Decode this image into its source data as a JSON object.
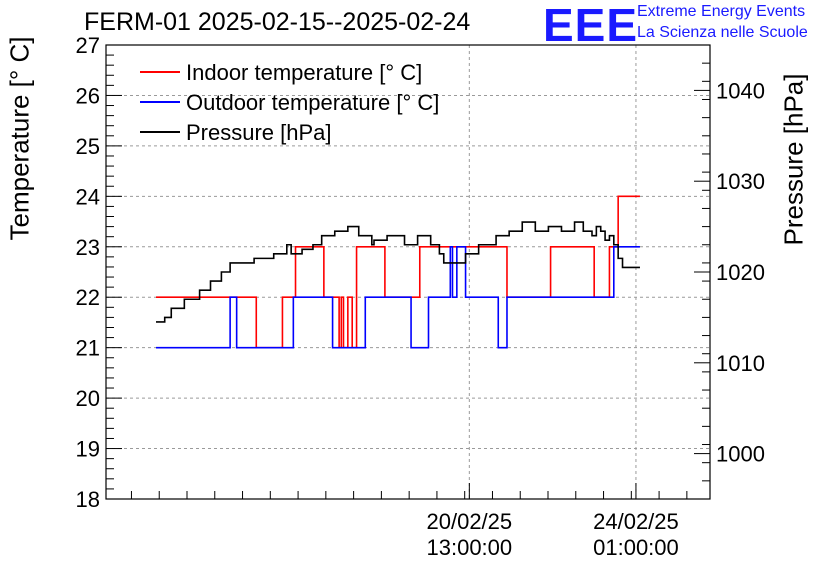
{
  "header": {
    "title": "FERM-01 2025-02-15--2025-02-24",
    "logo_text": "EEE",
    "logo_line1": "Extreme Energy Events",
    "logo_line2": "La Scienza nelle Scuole",
    "logo_color": "#1a1aff"
  },
  "chart_data": {
    "type": "line",
    "title": "FERM-01 2025-02-15--2025-02-24",
    "ylabel": "Temperature [° C]",
    "y2label": "Pressure [hPa]",
    "ylim": [
      18,
      27
    ],
    "y2lim": [
      995,
      1045
    ],
    "yticks": [
      18,
      19,
      20,
      21,
      22,
      23,
      24,
      25,
      26,
      27
    ],
    "y2ticks": [
      1000,
      1010,
      1020,
      1030,
      1040
    ],
    "x_unit": "hours since 2025-02-15 00:00",
    "xlim": [
      -23,
      238
    ],
    "xtick_labels": [
      {
        "line1": "20/02/25",
        "line2": "13:00:00"
      },
      {
        "line1": "24/02/25",
        "line2": "01:00:00"
      }
    ],
    "grid": true,
    "legend_position": "top-left",
    "series": [
      {
        "name": "Indoor temperature [° C]",
        "axis": "left",
        "color": "#ff0000",
        "points": [
          [
            0,
            22
          ],
          [
            40,
            22
          ],
          [
            46,
            21
          ],
          [
            55,
            21
          ],
          [
            58,
            22
          ],
          [
            62,
            22
          ],
          [
            64,
            23
          ],
          [
            76,
            23
          ],
          [
            77,
            22
          ],
          [
            83,
            22
          ],
          [
            84,
            21
          ],
          [
            85,
            22
          ],
          [
            86,
            21
          ],
          [
            88,
            22
          ],
          [
            90,
            21
          ],
          [
            92,
            23
          ],
          [
            104,
            23
          ],
          [
            105,
            22
          ],
          [
            120,
            22
          ],
          [
            121,
            23
          ],
          [
            160,
            23
          ],
          [
            161,
            22
          ],
          [
            179,
            22
          ],
          [
            181,
            23
          ],
          [
            200,
            23
          ],
          [
            201,
            22
          ],
          [
            206,
            22
          ],
          [
            208,
            23
          ],
          [
            211,
            23
          ],
          [
            212,
            24
          ],
          [
            222,
            24
          ]
        ]
      },
      {
        "name": "Outdoor temperature [° C]",
        "axis": "left",
        "color": "#0000ff",
        "points": [
          [
            0,
            21
          ],
          [
            33,
            21
          ],
          [
            34,
            22
          ],
          [
            36,
            22
          ],
          [
            37,
            21
          ],
          [
            62,
            21
          ],
          [
            63,
            22
          ],
          [
            80,
            22
          ],
          [
            81,
            21
          ],
          [
            94,
            21
          ],
          [
            96,
            22
          ],
          [
            116,
            22
          ],
          [
            117,
            21
          ],
          [
            124,
            21
          ],
          [
            125,
            22
          ],
          [
            134,
            22
          ],
          [
            135,
            23
          ],
          [
            136,
            22
          ],
          [
            138,
            23
          ],
          [
            141,
            23
          ],
          [
            142,
            22
          ],
          [
            155,
            22
          ],
          [
            157,
            21
          ],
          [
            160,
            21
          ],
          [
            161,
            22
          ],
          [
            208,
            22
          ],
          [
            210,
            23
          ],
          [
            222,
            23
          ]
        ]
      },
      {
        "name": "Pressure [hPa]",
        "axis": "right",
        "color": "#000000",
        "points": [
          [
            0,
            1014.5
          ],
          [
            3,
            1014.5
          ],
          [
            4,
            1015
          ],
          [
            6,
            1015
          ],
          [
            7,
            1016
          ],
          [
            12,
            1016
          ],
          [
            13,
            1017
          ],
          [
            18,
            1017
          ],
          [
            20,
            1018
          ],
          [
            23,
            1018
          ],
          [
            25,
            1019
          ],
          [
            29,
            1019
          ],
          [
            30,
            1020
          ],
          [
            33,
            1020
          ],
          [
            34,
            1021
          ],
          [
            43,
            1021
          ],
          [
            45,
            1021.5
          ],
          [
            52,
            1021.5
          ],
          [
            54,
            1022
          ],
          [
            58,
            1022
          ],
          [
            60,
            1023
          ],
          [
            62,
            1022
          ],
          [
            65,
            1022
          ],
          [
            67,
            1022.5
          ],
          [
            70,
            1022.5
          ],
          [
            72,
            1023
          ],
          [
            75,
            1023
          ],
          [
            76,
            1024
          ],
          [
            80,
            1024
          ],
          [
            82,
            1024.5
          ],
          [
            86,
            1024.5
          ],
          [
            88,
            1025
          ],
          [
            91,
            1025
          ],
          [
            93,
            1024
          ],
          [
            97,
            1024
          ],
          [
            99,
            1023
          ],
          [
            100,
            1023.5
          ],
          [
            104,
            1023.5
          ],
          [
            106,
            1024
          ],
          [
            112,
            1024
          ],
          [
            114,
            1023
          ],
          [
            118,
            1023
          ],
          [
            120,
            1024
          ],
          [
            124,
            1024
          ],
          [
            126,
            1023
          ],
          [
            128,
            1023
          ],
          [
            130,
            1022
          ],
          [
            132,
            1021
          ],
          [
            140,
            1021
          ],
          [
            142,
            1022
          ],
          [
            146,
            1022
          ],
          [
            148,
            1023
          ],
          [
            154,
            1023
          ],
          [
            156,
            1024
          ],
          [
            160,
            1024
          ],
          [
            162,
            1024.5
          ],
          [
            166,
            1024.5
          ],
          [
            168,
            1025.5
          ],
          [
            172,
            1025.5
          ],
          [
            174,
            1024.5
          ],
          [
            178,
            1024.5
          ],
          [
            180,
            1025
          ],
          [
            184,
            1025
          ],
          [
            186,
            1024.5
          ],
          [
            190,
            1024.5
          ],
          [
            192,
            1025.5
          ],
          [
            194,
            1025.5
          ],
          [
            196,
            1024.5
          ],
          [
            200,
            1024
          ],
          [
            202,
            1025
          ],
          [
            204,
            1024.5
          ],
          [
            206,
            1023.5
          ],
          [
            208,
            1024
          ],
          [
            210,
            1023
          ],
          [
            212,
            1021.5
          ],
          [
            214,
            1020.5
          ],
          [
            222,
            1020.5
          ]
        ]
      }
    ]
  }
}
